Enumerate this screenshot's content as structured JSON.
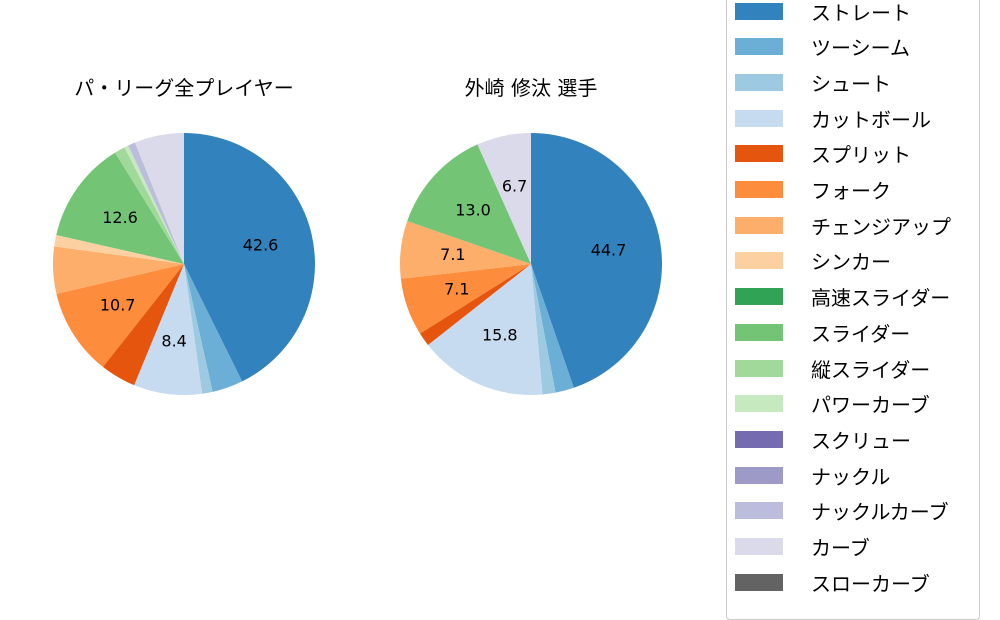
{
  "chart_data": [
    {
      "type": "pie",
      "title": "パ・リーグ全プレイヤー",
      "categories": [
        "ストレート",
        "ツーシーム",
        "シュート",
        "カットボール",
        "スプリット",
        "フォーク",
        "チェンジアップ",
        "シンカー",
        "スライダー",
        "縦スライダー",
        "パワーカーブ",
        "ナックルカーブ",
        "カーブ"
      ],
      "values": [
        42.6,
        3.8,
        1.3,
        8.4,
        4.4,
        10.7,
        5.8,
        1.4,
        12.6,
        1.3,
        0.5,
        0.9,
        6.1
      ],
      "labels_shown": [
        "42.6",
        "",
        "",
        "8.4",
        "",
        "10.7",
        "",
        "",
        "12.6",
        "",
        "",
        "",
        ""
      ]
    },
    {
      "type": "pie",
      "title": "外崎 修汰  選手",
      "categories": [
        "ストレート",
        "ツーシーム",
        "シュート",
        "カットボール",
        "スプリット",
        "フォーク",
        "チェンジアップ",
        "スライダー",
        "カーブ"
      ],
      "values": [
        44.7,
        2.3,
        1.6,
        15.8,
        1.7,
        7.1,
        7.1,
        13.0,
        6.7
      ],
      "labels_shown": [
        "44.7",
        "",
        "",
        "15.8",
        "",
        "7.1",
        "7.1",
        "13.0",
        "6.7"
      ]
    }
  ],
  "colors": {
    "ストレート": "#3182bd",
    "ツーシーム": "#6baed6",
    "シュート": "#9ecae1",
    "カットボール": "#c6dbef",
    "スプリット": "#e6550d",
    "フォーク": "#fd8d3c",
    "チェンジアップ": "#fdae6b",
    "シンカー": "#fdd0a2",
    "高速スライダー": "#31a354",
    "スライダー": "#74c476",
    "縦スライダー": "#a1d99b",
    "パワーカーブ": "#c7e9c0",
    "スクリュー": "#756bb1",
    "ナックル": "#9e9ac8",
    "ナックルカーブ": "#bcbddc",
    "カーブ": "#dadaeb",
    "スローカーブ": "#636363"
  },
  "legend": {
    "items": [
      "ストレート",
      "ツーシーム",
      "シュート",
      "カットボール",
      "スプリット",
      "フォーク",
      "チェンジアップ",
      "シンカー",
      "高速スライダー",
      "スライダー",
      "縦スライダー",
      "パワーカーブ",
      "スクリュー",
      "ナックル",
      "ナックルカーブ",
      "カーブ",
      "スローカーブ"
    ]
  },
  "titles": {
    "left": "パ・リーグ全プレイヤー",
    "right": "外崎 修汰  選手"
  }
}
